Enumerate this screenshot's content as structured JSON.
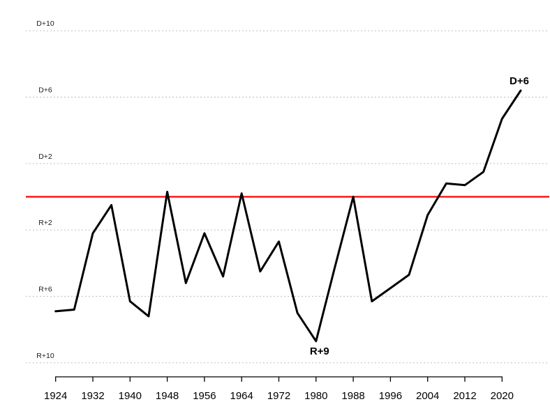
{
  "chart_data": {
    "type": "line",
    "title": "",
    "value_convention": "positive = R margin (plotted downward), negative = D margin (plotted upward)",
    "x": [
      1924,
      1928,
      1932,
      1936,
      1940,
      1944,
      1948,
      1952,
      1956,
      1960,
      1964,
      1968,
      1972,
      1976,
      1980,
      1984,
      1988,
      1992,
      1996,
      2000,
      2004,
      2008,
      2012,
      2016,
      2020,
      2024
    ],
    "series": [
      {
        "name": "partisan-margin",
        "color": "#000000",
        "values": [
          6.9,
          6.8,
          2.2,
          0.5,
          6.3,
          7.2,
          -0.3,
          5.2,
          2.2,
          4.8,
          -0.2,
          4.5,
          2.7,
          7.0,
          8.7,
          4.3,
          0.0,
          6.3,
          5.5,
          4.7,
          1.1,
          -0.8,
          -0.7,
          -1.5,
          -4.7,
          -6.4
        ]
      }
    ],
    "y_axis": {
      "gridlines": [
        {
          "label": "D+10",
          "value": -10
        },
        {
          "label": "D+6",
          "value": -6
        },
        {
          "label": "D+2",
          "value": -2
        },
        {
          "label": "R+2",
          "value": 2
        },
        {
          "label": "R+6",
          "value": 6
        },
        {
          "label": "R+10",
          "value": 10
        }
      ],
      "grid_style": "dotted",
      "grid_color": "#c6c6c6",
      "label_color": "#1a1a1a"
    },
    "x_axis": {
      "tick_labels": [
        "1924",
        "1932",
        "1940",
        "1948",
        "1956",
        "1964",
        "1972",
        "1980",
        "1988",
        "1996",
        "2004",
        "2012",
        "2020"
      ],
      "tick_years": [
        1924,
        1932,
        1940,
        1948,
        1956,
        1964,
        1972,
        1980,
        1988,
        1996,
        2004,
        2012,
        2020
      ],
      "color": "#000000"
    },
    "reference_line": {
      "value": 0,
      "color": "#ff0000"
    },
    "annotations": [
      {
        "text": "R+9",
        "year": 1980,
        "value": 8.7,
        "placement": "below"
      },
      {
        "text": "D+6",
        "year": 2024,
        "value": -6.4,
        "placement": "above"
      }
    ],
    "xlim": [
      1924,
      2024
    ],
    "ylim": [
      -11,
      11
    ],
    "legend": "none",
    "background": "#ffffff"
  }
}
